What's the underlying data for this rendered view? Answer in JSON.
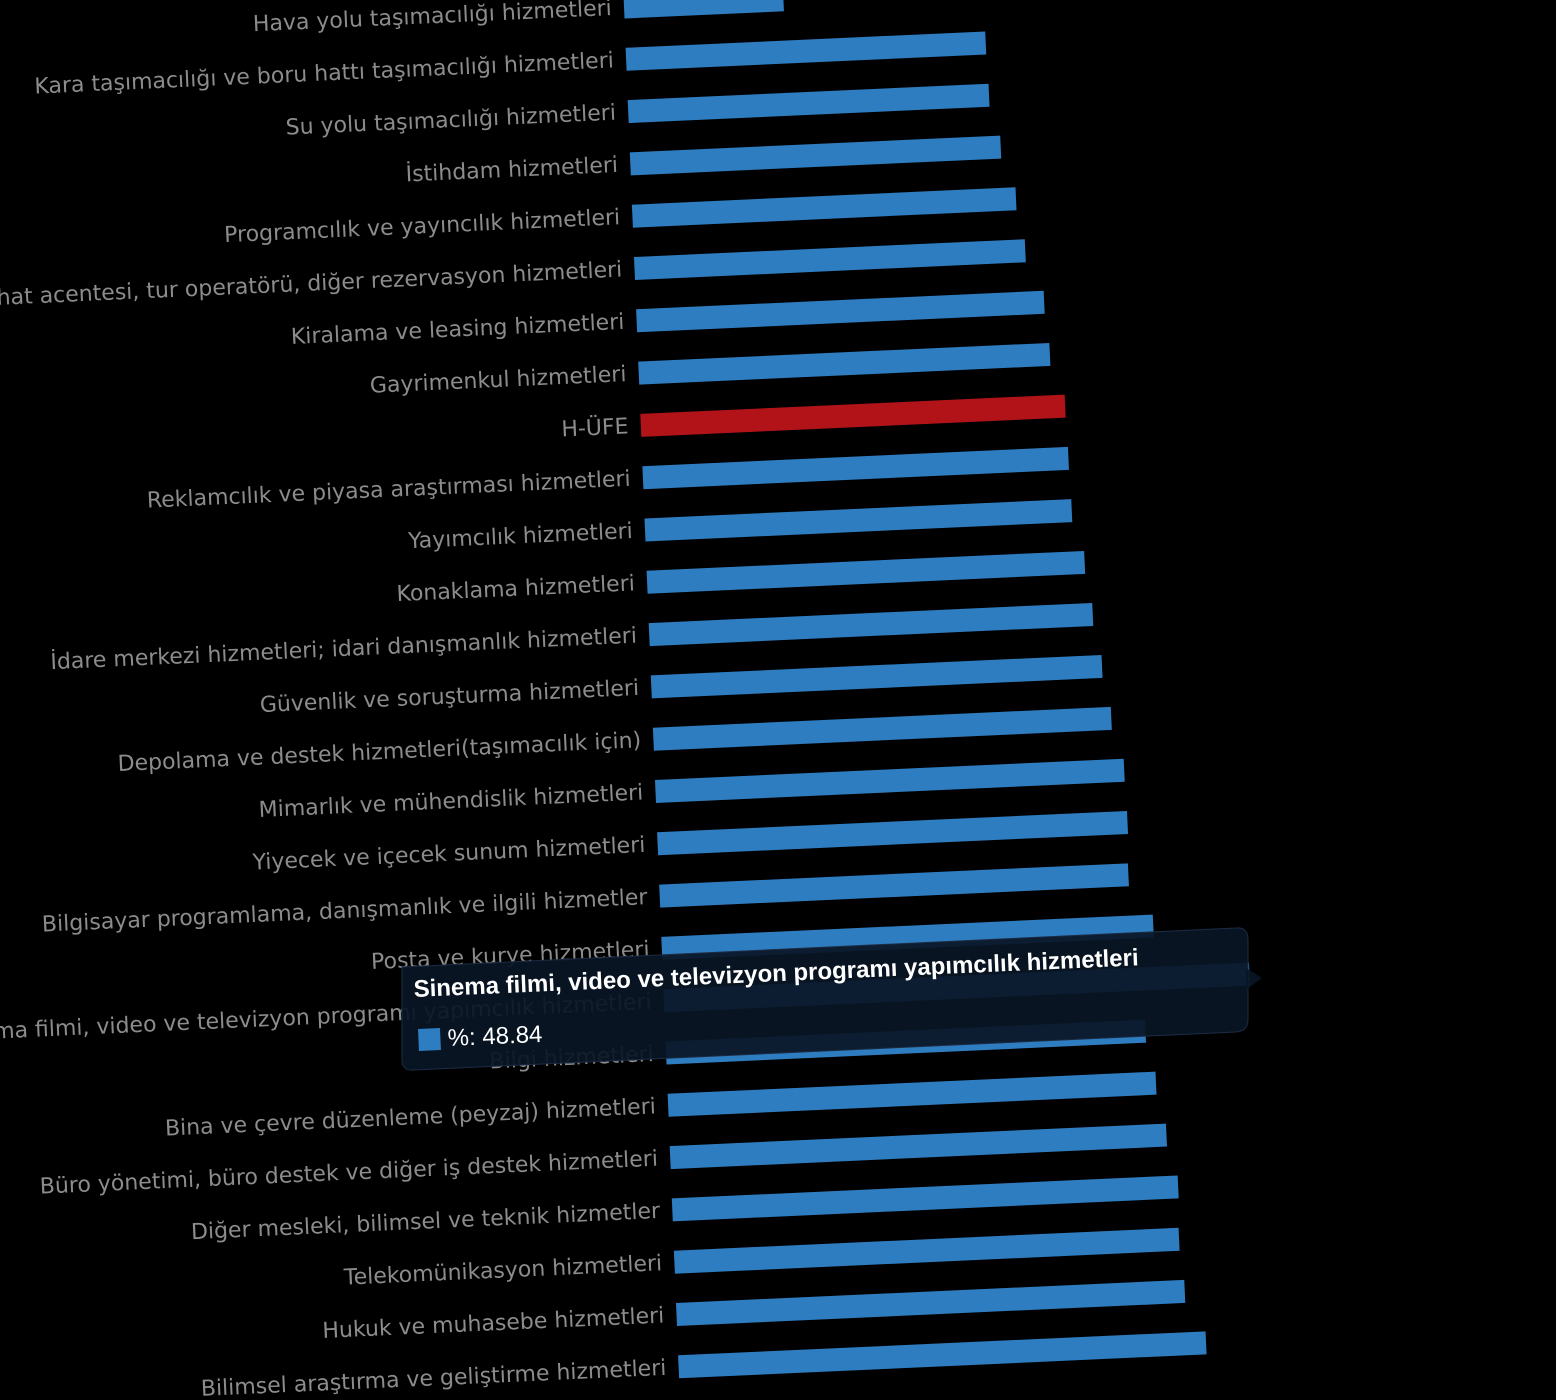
{
  "chart_data": {
    "type": "bar",
    "orientation": "horizontal",
    "categories": [
      "Hava yolu taşımacılığı hizmetleri",
      "Kara taşımacılığı ve boru hattı taşımacılığı hizmetleri",
      "Su yolu taşımacılığı hizmetleri",
      "İstihdam hizmetleri",
      "Programcılık ve yayıncılık hizmetleri",
      "Seyahat acentesi, tur operatörü, diğer rezervasyon hizmetleri",
      "Kiralama ve leasing hizmetleri",
      "Gayrimenkul hizmetleri",
      "H-ÜFE",
      "Reklamcılık ve piyasa araştırması hizmetleri",
      "Yayımcılık hizmetleri",
      "Konaklama hizmetleri",
      "İdare merkezi hizmetleri; idari danışmanlık hizmetleri",
      "Güvenlik ve soruşturma hizmetleri",
      "Depolama ve destek hizmetleri(taşımacılık için)",
      "Mimarlık ve mühendislik hizmetleri",
      "Yiyecek ve içecek sunum hizmetleri",
      "Bilgisayar programlama, danışmanlık ve ilgili hizmetler",
      "Posta ve kurye hizmetleri",
      "Sinema filmi, video ve televizyon programı yapımcılık hizmetleri",
      "Bilgi hizmetleri",
      "Bina ve çevre düzenleme (peyzaj) hizmetleri",
      "Büro yönetimi, büro destek ve diğer iş destek hizmetleri",
      "Diğer mesleki, bilimsel ve teknik hizmetler",
      "Telekomünikasyon hizmetleri",
      "Hukuk ve muhasebe hizmetleri",
      "Bilimsel araştırma ve geliştirme hizmetleri"
    ],
    "values": [
      13.3,
      30.0,
      30.1,
      30.9,
      32.0,
      32.6,
      34.0,
      34.3,
      35.4,
      35.5,
      35.6,
      36.5,
      37.0,
      37.6,
      38.2,
      39.1,
      39.2,
      39.1,
      41.0,
      48.84,
      40.0,
      40.7,
      41.4,
      42.2,
      42.1,
      42.4,
      44.0
    ],
    "highlight_category": "H-ÜFE",
    "colors": {
      "bar": "#2e7dc1",
      "highlight": "#b11319",
      "label": "#8c8c8c",
      "background": "#000000",
      "tooltip_bg": "#0a1526"
    },
    "tooltip": {
      "title": "Sinema filmi, video ve televizyon programı yapımcılık hizmetleri",
      "label": "%: 48.84"
    }
  }
}
